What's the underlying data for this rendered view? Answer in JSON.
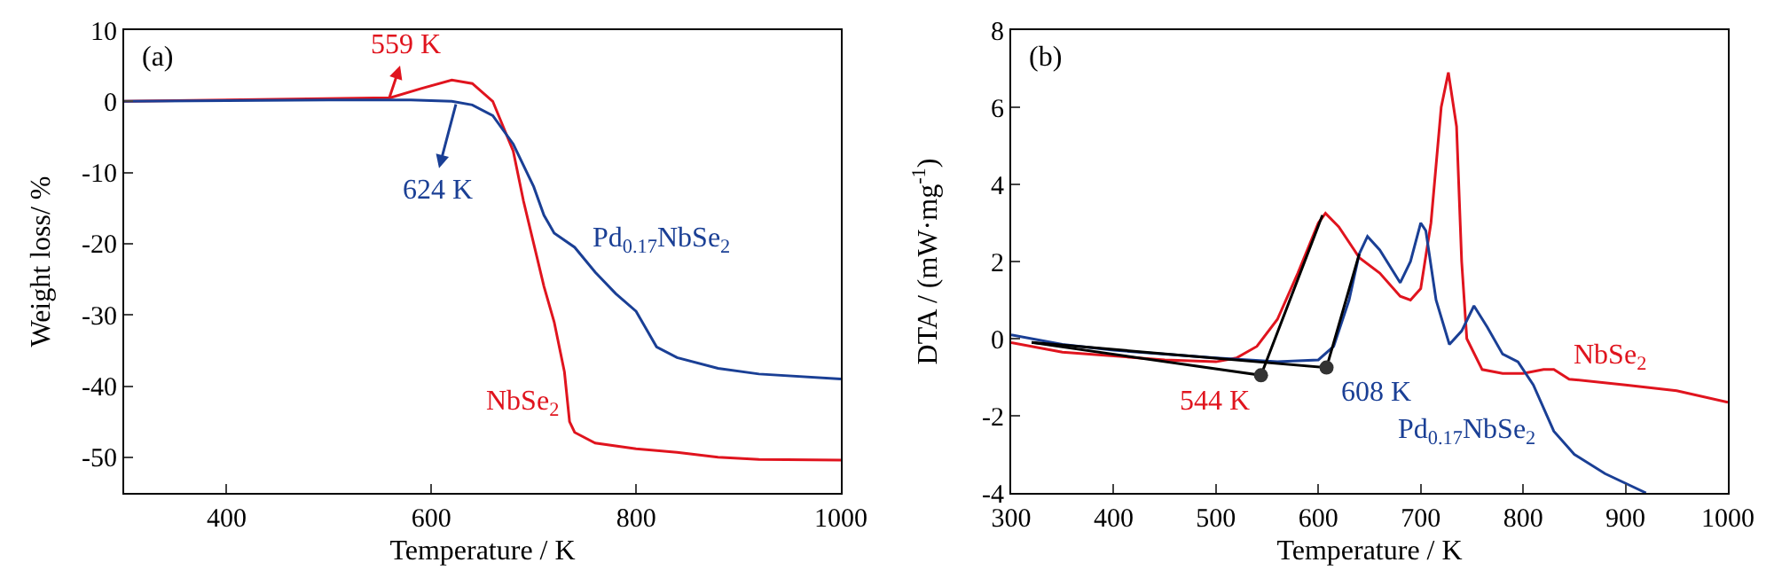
{
  "chart_data": [
    {
      "type": "line",
      "xlabel": "Temperature / K",
      "ylabel": "Weight loss/ %",
      "xlim": [
        300,
        1000
      ],
      "xticks": [
        400,
        600,
        800,
        1000
      ],
      "ylim": [
        -55,
        10
      ],
      "yticks": [
        -50,
        -40,
        -30,
        -20,
        -10,
        0,
        10
      ],
      "grid": false,
      "legend": false,
      "annotations": [
        "(a)",
        {
          "text": "559 K",
          "x": 559,
          "y": 0.5
        },
        {
          "text": "624 K",
          "x": 624,
          "y": -0.4
        }
      ],
      "series": [
        {
          "name": "NbSe$_{2}$",
          "color": "#e0141e",
          "x": [
            300,
            560,
            590,
            620,
            640,
            660,
            680,
            690,
            700,
            710,
            720,
            730,
            735,
            740,
            760,
            800,
            840,
            880,
            920,
            1000
          ],
          "values": [
            0,
            0.5,
            1.8,
            3,
            2.5,
            0,
            -7,
            -14,
            -20,
            -26,
            -31,
            -38,
            -45,
            -46.5,
            -48,
            -48.8,
            -49.3,
            -50,
            -50.3,
            -50.4
          ]
        },
        {
          "name": "Pd$_{0.17}$NbSe$_{2}$",
          "color": "#1a3f95",
          "x": [
            300,
            400,
            500,
            580,
            620,
            640,
            660,
            680,
            700,
            710,
            720,
            740,
            760,
            780,
            800,
            810,
            820,
            840,
            880,
            920,
            1000
          ],
          "values": [
            0,
            0.1,
            0.2,
            0.2,
            0,
            -0.5,
            -2,
            -6,
            -12,
            -16,
            -18.5,
            -20.5,
            -24,
            -27,
            -29.5,
            -32,
            -34.5,
            -36,
            -37.5,
            -38.3,
            -39
          ]
        }
      ]
    },
    {
      "type": "line",
      "xlabel": "Temperature / K",
      "ylabel": "DTA / (mW·mg$^{-1}$)",
      "xlim": [
        300,
        1000
      ],
      "xticks": [
        300,
        400,
        500,
        600,
        700,
        800,
        900,
        1000
      ],
      "ylim": [
        -4,
        8
      ],
      "yticks": [
        -4,
        -2,
        0,
        2,
        4,
        6,
        8
      ],
      "grid": false,
      "legend": false,
      "annotations": [
        "(b)",
        {
          "text": "544 K",
          "x": 544,
          "y": -0.95
        },
        {
          "text": "608 K",
          "x": 608,
          "y": -0.75
        }
      ],
      "series": [
        {
          "name": "NbSe$_{2}$",
          "color": "#e0141e",
          "x": [
            300,
            350,
            400,
            450,
            500,
            520,
            540,
            560,
            580,
            600,
            607,
            620,
            640,
            660,
            680,
            690,
            700,
            710,
            720,
            727,
            735,
            740,
            745,
            760,
            780,
            800,
            820,
            830,
            845,
            900,
            950,
            1000
          ],
          "values": [
            -0.1,
            -0.35,
            -0.45,
            -0.55,
            -0.6,
            -0.5,
            -0.2,
            0.5,
            1.7,
            3.0,
            3.25,
            2.9,
            2.1,
            1.7,
            1.1,
            1.0,
            1.3,
            3.0,
            6.0,
            6.9,
            5.5,
            2.0,
            0,
            -0.8,
            -0.9,
            -0.9,
            -0.8,
            -0.8,
            -1.05,
            -1.2,
            -1.35,
            -1.65
          ]
        },
        {
          "name": "Pd$_{0.17}$NbSe$_{2}$",
          "color": "#1a3f95",
          "x": [
            300,
            350,
            400,
            500,
            560,
            600,
            615,
            630,
            640,
            648,
            660,
            680,
            690,
            700,
            705,
            715,
            728,
            740,
            752,
            765,
            780,
            795,
            810,
            830,
            850,
            880,
            920
          ],
          "values": [
            0.1,
            -0.15,
            -0.3,
            -0.5,
            -0.6,
            -0.55,
            -0.2,
            1.0,
            2.2,
            2.65,
            2.3,
            1.45,
            2.0,
            3.0,
            2.8,
            1.0,
            -0.15,
            0.2,
            0.85,
            0.3,
            -0.4,
            -0.6,
            -1.2,
            -2.4,
            -3.0,
            -3.5,
            -4.0
          ]
        },
        {
          "color": "#000000",
          "x": [
            320,
            544,
            604
          ],
          "values": [
            -0.1,
            -0.95,
            3.2
          ]
        },
        {
          "color": "#000000",
          "x": [
            320,
            608,
            640
          ],
          "values": [
            -0.1,
            -0.75,
            2.2
          ]
        },
        {
          "type": "scatter",
          "marker": "circle",
          "color": "#333333",
          "x": [
            544,
            608
          ],
          "values": [
            -0.95,
            -0.75
          ]
        }
      ]
    }
  ]
}
